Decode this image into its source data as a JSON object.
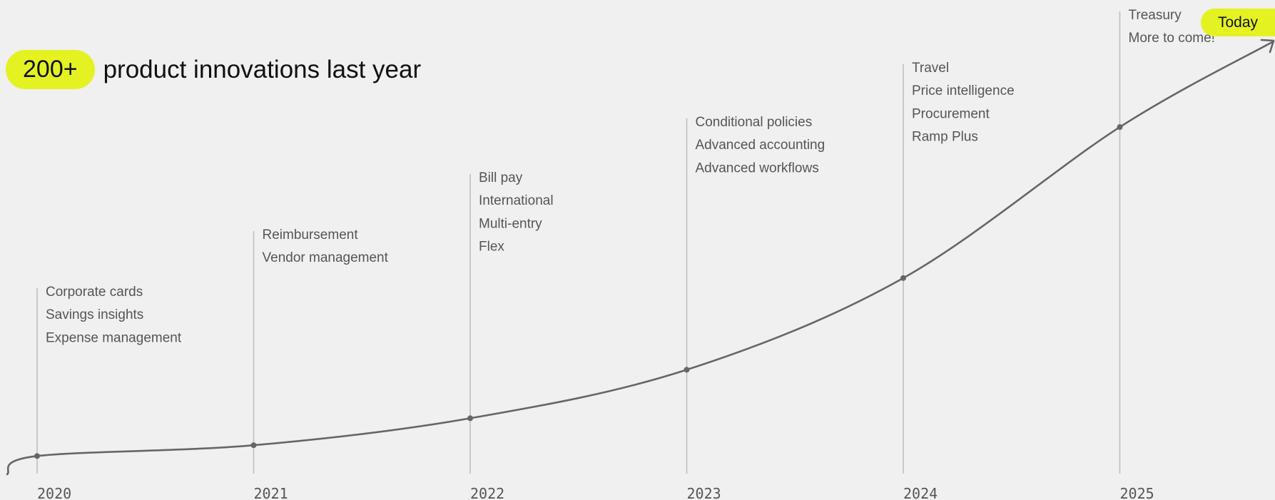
{
  "headline": {
    "badge": "200+",
    "text": "product innovations last year"
  },
  "today_label": "Today",
  "colors": {
    "accent": "#e4f221",
    "line": "#666666",
    "marker": "#bcbcbc",
    "text": "#555555",
    "background": "#f0f0f0"
  },
  "chart_data": {
    "type": "line",
    "categories": [
      "2020",
      "2021",
      "2022",
      "2023",
      "2024",
      "2025"
    ],
    "series": [
      {
        "values": [
          0.3,
          0.5,
          1.0,
          1.9,
          3.6,
          6.4
        ]
      }
    ],
    "annotations": [
      {
        "year": "2020",
        "items": [
          "Corporate cards",
          "Savings insights",
          "Expense management"
        ]
      },
      {
        "year": "2021",
        "items": [
          "Reimbursement",
          "Vendor management"
        ]
      },
      {
        "year": "2022",
        "items": [
          "Bill pay",
          "International",
          "Multi-entry",
          "Flex"
        ]
      },
      {
        "year": "2023",
        "items": [
          "Conditional policies",
          "Advanced accounting",
          "Advanced workflows"
        ]
      },
      {
        "year": "2024",
        "items": [
          "Travel",
          "Price intelligence",
          "Procurement",
          "Ramp Plus"
        ]
      },
      {
        "year": "2025",
        "items": [
          "Treasury",
          "More to come!"
        ]
      }
    ],
    "grid": false,
    "legend": "none"
  }
}
